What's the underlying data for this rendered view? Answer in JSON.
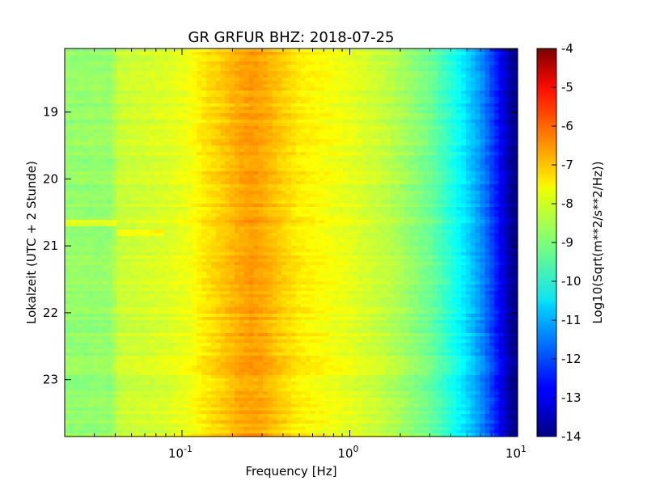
{
  "chart_data": {
    "type": "heatmap",
    "title": "GR GRFUR BHZ: 2018-07-25",
    "xlabel": "Frequency [Hz]",
    "ylabel": "Lokalzeit (UTC + 2 Stunde)",
    "xscale": "log",
    "xlim": [
      0.02,
      10
    ],
    "ylim": [
      23.85,
      18.05
    ],
    "x_ticks": [
      {
        "value": 0.1,
        "base": "10",
        "exp": "-1"
      },
      {
        "value": 1,
        "base": "10",
        "exp": "0"
      },
      {
        "value": 10,
        "base": "10",
        "exp": "1"
      }
    ],
    "y_ticks": [
      {
        "value": 19,
        "label": "19"
      },
      {
        "value": 20,
        "label": "20"
      },
      {
        "value": 21,
        "label": "21"
      },
      {
        "value": 22,
        "label": "22"
      },
      {
        "value": 23,
        "label": "23"
      }
    ],
    "colorbar": {
      "label": "Log10(Sqrt(m**2/s**2/Hz))",
      "range": [
        -14,
        -4
      ],
      "colormap": "jet",
      "ticks": [
        "-4",
        "-5",
        "-6",
        "-7",
        "-8",
        "-9",
        "-10",
        "-11",
        "-12",
        "-13",
        "-14"
      ]
    },
    "spectrum_profile": {
      "freq_hz": [
        0.02,
        0.039,
        0.04,
        0.08,
        0.11,
        0.13,
        0.18,
        0.22,
        0.26,
        0.3,
        0.4,
        0.5,
        0.7,
        1.0,
        1.5,
        2.0,
        3.0,
        4.0,
        5.0,
        6.0,
        7.0,
        8.0,
        9.0,
        10.0
      ],
      "log10_amplitude": [
        -8.8,
        -8.8,
        -8.3,
        -8.1,
        -7.9,
        -7.6,
        -7.2,
        -6.9,
        -6.8,
        -6.9,
        -7.3,
        -7.6,
        -7.8,
        -8.0,
        -8.3,
        -8.6,
        -9.2,
        -9.9,
        -10.6,
        -11.3,
        -12.1,
        -12.9,
        -13.7,
        -14.0
      ]
    }
  }
}
